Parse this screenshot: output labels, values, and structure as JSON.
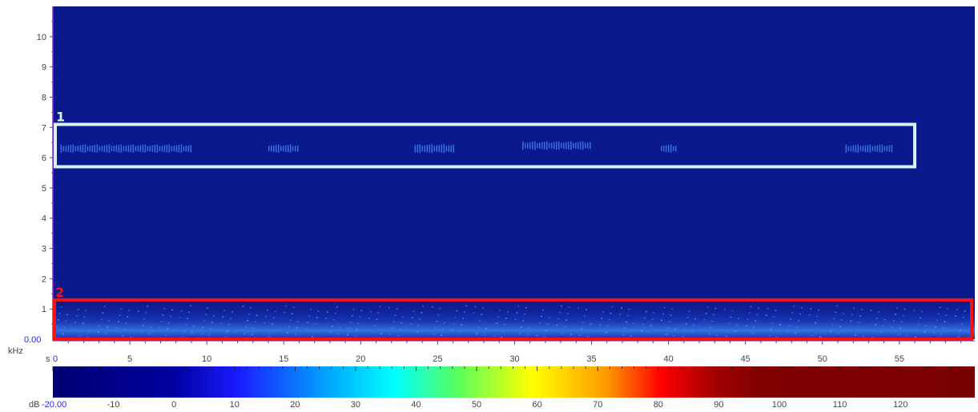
{
  "spectrogram": {
    "freq_axis": {
      "unit": "kHz",
      "origin_label": "0.00",
      "tick_labels": [
        "1",
        "2",
        "3",
        "4",
        "5",
        "6",
        "7",
        "8",
        "9",
        "10"
      ],
      "range": [
        0,
        11
      ]
    },
    "time_axis": {
      "unit": "s",
      "origin_label": "0",
      "tick_labels": [
        "5",
        "10",
        "15",
        "20",
        "25",
        "30",
        "35",
        "40",
        "45",
        "50",
        "55"
      ],
      "range": [
        0,
        60
      ]
    },
    "background_color": "#0a1a8c",
    "annotations": [
      {
        "label": "1",
        "color": "#d8f0f8",
        "time_range": [
          0,
          56
        ],
        "freq_range": [
          5.7,
          7.1
        ]
      },
      {
        "label": "2",
        "color": "#ff1010",
        "time_range": [
          0,
          60
        ],
        "freq_range": [
          0,
          1.3
        ]
      }
    ],
    "bursts_box1": [
      {
        "t": [
          0.5,
          9
        ],
        "f": 6.3
      },
      {
        "t": [
          14,
          16
        ],
        "f": 6.3
      },
      {
        "t": [
          23.5,
          26
        ],
        "f": 6.3
      },
      {
        "t": [
          30.5,
          35
        ],
        "f": 6.4
      },
      {
        "t": [
          39.5,
          40.5
        ],
        "f": 6.3
      },
      {
        "t": [
          51.5,
          54.5
        ],
        "f": 6.3
      }
    ]
  },
  "colorbar": {
    "unit": "dB",
    "min_label": "-20.00",
    "tick_labels": [
      "-10",
      "0",
      "10",
      "20",
      "30",
      "40",
      "50",
      "60",
      "70",
      "80",
      "90",
      "100",
      "110",
      "120"
    ],
    "range": [
      -20,
      130
    ],
    "colors": [
      "#000080",
      "#0000ff",
      "#00ffff",
      "#ffff00",
      "#ff0000",
      "#800000"
    ]
  }
}
